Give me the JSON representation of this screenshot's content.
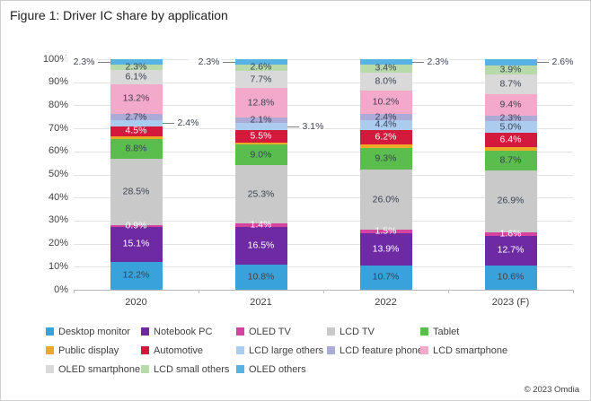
{
  "title": "Figure 1: Driver IC share by application",
  "footer": {
    "copyright": "© 2023 Omdia"
  },
  "chart_data": {
    "type": "bar",
    "variant": "stacked-100-percent",
    "title": "Figure 1: Driver IC share by application",
    "categories": [
      "2020",
      "2021",
      "2022",
      "2023 (F)"
    ],
    "y_axis": {
      "min": 0,
      "max": 100,
      "grid": true,
      "ticks": [
        "0%",
        "10%",
        "20%",
        "30%",
        "40%",
        "50%",
        "60%",
        "70%",
        "80%",
        "90%",
        "100%"
      ]
    },
    "legend_position": "bottom",
    "series": [
      {
        "name": "Desktop monitor",
        "color": "#3aa2db",
        "label_color": "#3b4152",
        "values": [
          12.2,
          10.8,
          10.7,
          10.6
        ]
      },
      {
        "name": "Notebook PC",
        "color": "#6d2aa3",
        "label_color": "#ffffff",
        "values": [
          15.1,
          16.5,
          13.9,
          12.7
        ]
      },
      {
        "name": "OLED TV",
        "color": "#d4439e",
        "label_color": "#ffffff",
        "values": [
          0.9,
          1.4,
          1.5,
          1.6
        ]
      },
      {
        "name": "LCD TV",
        "color": "#c9c9c9",
        "label_color": "#3b4152",
        "values": [
          28.5,
          25.3,
          26.0,
          26.9
        ]
      },
      {
        "name": "Tablet",
        "color": "#5bbd4d",
        "label_color": "#3b4152",
        "values": [
          8.8,
          9.0,
          9.3,
          8.7
        ]
      },
      {
        "name": "Public display",
        "color": "#efa928",
        "label_color": "#3b4152",
        "values": [
          1.0,
          0.9,
          1.7,
          1.2
        ],
        "show_label": false,
        "estimated": true
      },
      {
        "name": "Automotive",
        "color": "#d31a3d",
        "label_color": "#ffffff",
        "values": [
          4.5,
          5.5,
          6.2,
          6.4
        ]
      },
      {
        "name": "LCD large others",
        "color": "#abcbef",
        "label_color": "#3b4152",
        "values": [
          2.4,
          3.1,
          4.4,
          5.0
        ],
        "callouts": [
          "right",
          "right",
          null,
          null
        ]
      },
      {
        "name": "LCD feature phone",
        "color": "#acaad6",
        "label_color": "#3b4152",
        "values": [
          2.7,
          2.1,
          2.4,
          2.3
        ]
      },
      {
        "name": "LCD smartphone",
        "color": "#f3aaca",
        "label_color": "#3b4152",
        "values": [
          13.2,
          12.8,
          10.2,
          9.4
        ]
      },
      {
        "name": "OLED smartphone",
        "color": "#d9d9d9",
        "label_color": "#3b4152",
        "values": [
          6.1,
          7.7,
          8.0,
          8.7
        ]
      },
      {
        "name": "LCD small others",
        "color": "#b8d9a9",
        "label_color": "#3b4152",
        "values": [
          2.3,
          2.6,
          3.4,
          3.9
        ]
      },
      {
        "name": "OLED others",
        "color": "#58b2e2",
        "label_color": "#3b4152",
        "values": [
          2.3,
          2.3,
          2.3,
          2.6
        ],
        "callouts": [
          "left",
          "left",
          "right",
          "right"
        ]
      }
    ]
  }
}
